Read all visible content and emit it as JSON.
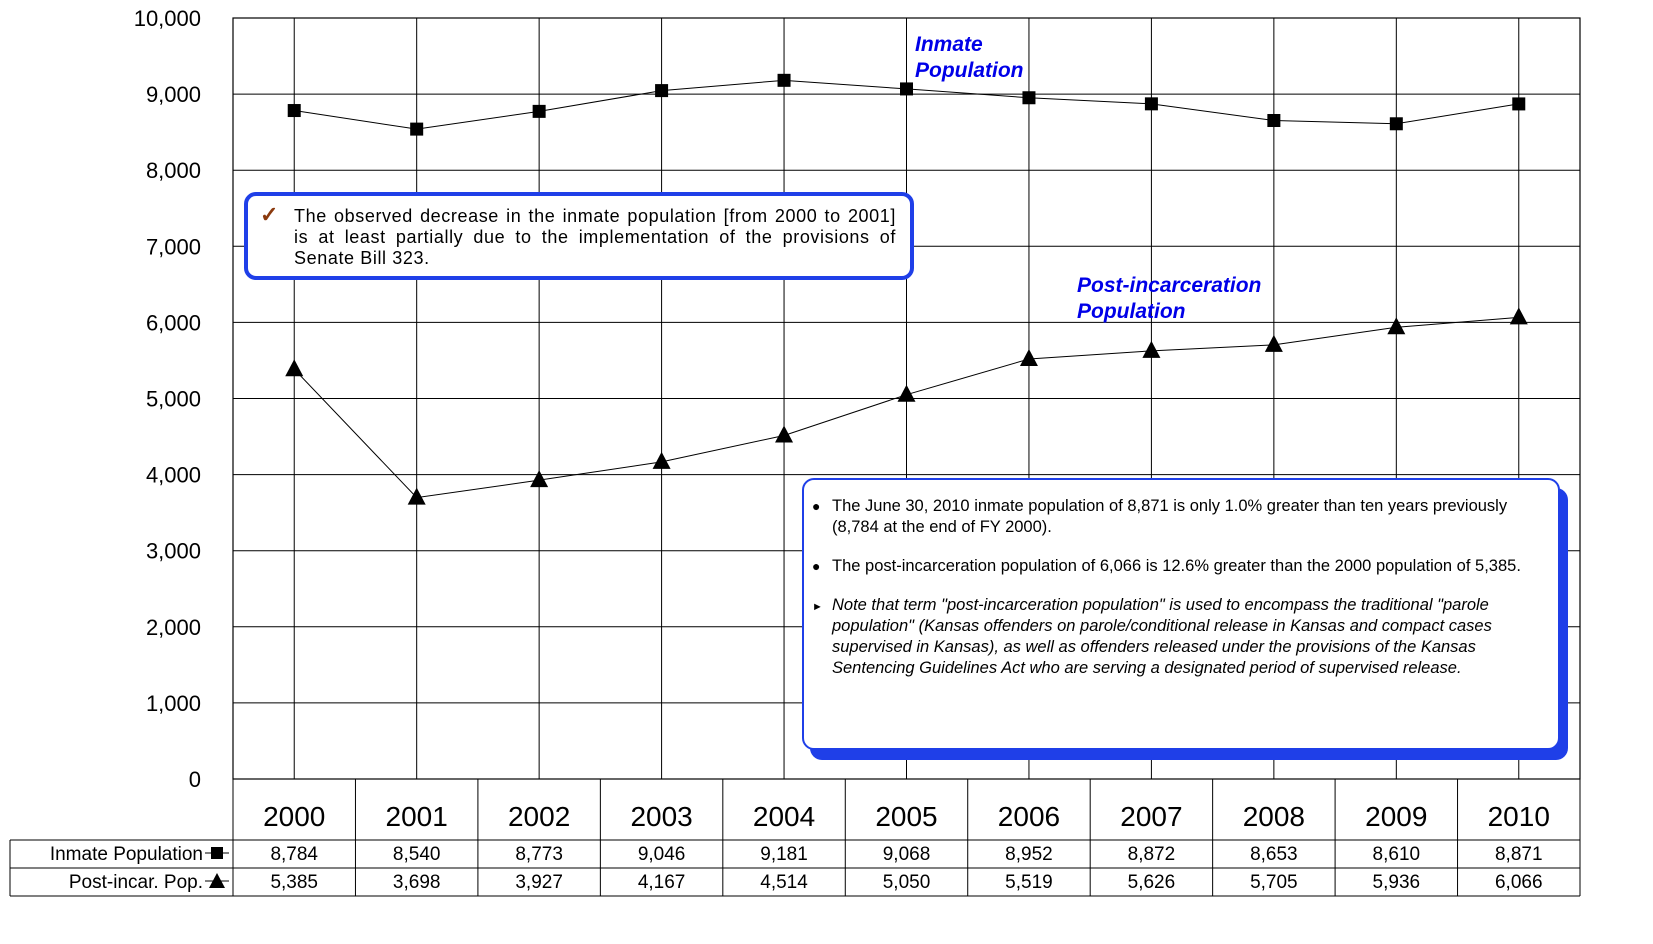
{
  "chart_data": {
    "type": "line",
    "categories": [
      "2000",
      "2001",
      "2002",
      "2003",
      "2004",
      "2005",
      "2006",
      "2007",
      "2008",
      "2009",
      "2010"
    ],
    "series": [
      {
        "name": "Inmate Population",
        "marker": "square",
        "values": [
          8784,
          8540,
          8773,
          9046,
          9181,
          9068,
          8952,
          8872,
          8653,
          8610,
          8871
        ],
        "labels": [
          "8,784",
          "8,540",
          "8,773",
          "9,046",
          "9,181",
          "9,068",
          "8,952",
          "8,872",
          "8,653",
          "8,610",
          "8,871"
        ]
      },
      {
        "name": "Post-incar. Pop.",
        "marker": "triangle",
        "values": [
          5385,
          3698,
          3927,
          4167,
          4514,
          5050,
          5519,
          5626,
          5705,
          5936,
          6066
        ],
        "labels": [
          "5,385",
          "3,698",
          "3,927",
          "4,167",
          "4,514",
          "5,050",
          "5,519",
          "5,626",
          "5,705",
          "5,936",
          "6,066"
        ]
      }
    ],
    "ylim": [
      0,
      10000
    ],
    "yticks": [
      "0",
      "1,000",
      "2,000",
      "3,000",
      "4,000",
      "5,000",
      "6,000",
      "7,000",
      "8,000",
      "9,000",
      "10,000"
    ],
    "grid": true,
    "series_labels": {
      "inmate": [
        "Inmate",
        "Population"
      ],
      "post": [
        "Post-incarceration",
        "Population"
      ]
    },
    "colors": {
      "series_line": "#000000",
      "callout_border": "#1f3fe8",
      "label_text": "#0000e8"
    }
  },
  "callouts": {
    "decrease_note": "The observed decrease in the inmate population [from 2000 to 2001] is at least partially due to the implementation of the provisions of Senate Bill 323.",
    "bullets": [
      "The June 30, 2010 inmate population of 8,871 is only 1.0% greater than ten years previously  (8,784 at the end of FY 2000).",
      "The post-incarceration population of 6,066 is 12.6% greater than the 2000 population of 5,385."
    ],
    "note": "Note that term \"post-incarceration population\" is used to encompass the traditional \"parole population\" (Kansas offenders on parole/conditional release in Kansas and compact cases supervised in Kansas), as well as offenders released under the provisions of the Kansas Sentencing Guidelines Act who are serving a designated period of supervised release."
  }
}
